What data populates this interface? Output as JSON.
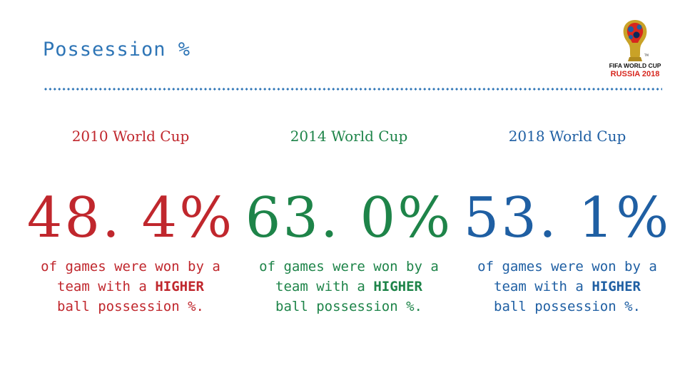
{
  "title": "Possession %",
  "colors": {
    "title": "#2e75b6",
    "divider": "#2e75b6",
    "col_2010": "#c0272d",
    "col_2014": "#1e8449",
    "col_2018": "#1f5fa3"
  },
  "logo": {
    "icon": "fifa-world-cup-trophy-icon",
    "line1": "FIFA WORLD CUP",
    "line2": "RUSSIA 2018",
    "tm": "TM"
  },
  "columns": [
    {
      "event": "2010 World Cup",
      "percentage": "48. 4%",
      "desc_line1": "of games were won by a",
      "desc_line2_pre": "team with a ",
      "desc_line2_bold": "HIGHER",
      "desc_line3": "ball possession %."
    },
    {
      "event": "2014 World Cup",
      "percentage": "63. 0%",
      "desc_line1": "of games were won by a",
      "desc_line2_pre": "team with a ",
      "desc_line2_bold": "HIGHER",
      "desc_line3": "ball possession %."
    },
    {
      "event": "2018 World Cup",
      "percentage": "53. 1%",
      "desc_line1": "of games were won by a",
      "desc_line2_pre": "team with a ",
      "desc_line2_bold": "HIGHER",
      "desc_line3": "ball possession %."
    }
  ]
}
